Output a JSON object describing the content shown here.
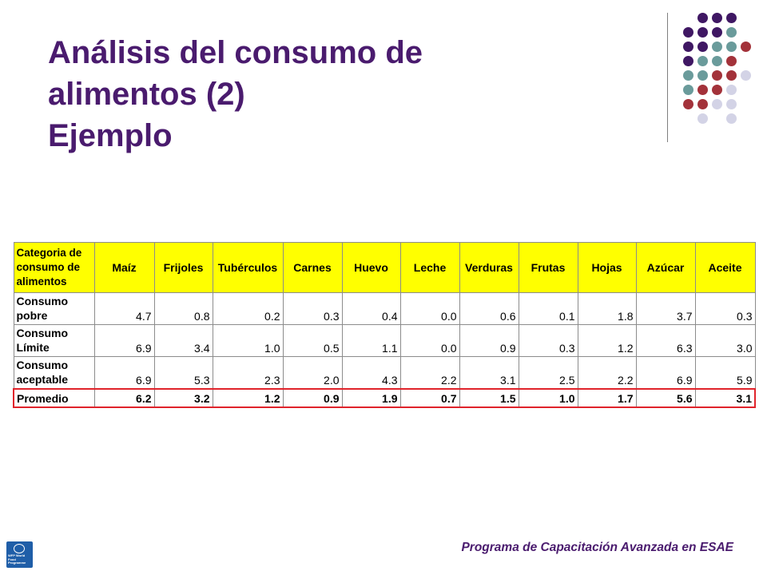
{
  "slide": {
    "title_lines": [
      "Análisis del consumo de",
      "alimentos (2)",
      "Ejemplo"
    ],
    "footer": "Programa de Capacitación Avanzada en ESAE",
    "logo": {
      "icon": "wfp-logo-icon",
      "text": "WFP World Food Programme"
    }
  },
  "colors": {
    "title": "#4a1b6e",
    "header_fill": "#ffff00",
    "highlight_border": "#e0232b",
    "dot_purple": "#3f1763",
    "dot_teal": "#6a9b9b",
    "dot_red": "#a3323a",
    "dot_lavender": "#d3d3e6"
  },
  "table": {
    "header": {
      "category": "Categoria de consumo de alimentos",
      "columns": [
        "Maíz",
        "Frijoles",
        "Tubérculos",
        "Carnes",
        "Huevo",
        "Leche",
        "Verduras",
        "Frutas",
        "Hojas",
        "Azúcar",
        "Aceite"
      ]
    },
    "rows": [
      {
        "label": "Consumo pobre",
        "values": [
          "4.7",
          "0.8",
          "0.2",
          "0.3",
          "0.4",
          "0.0",
          "0.6",
          "0.1",
          "1.8",
          "3.7",
          "0.3"
        ]
      },
      {
        "label": "Consumo Límite",
        "values": [
          "6.9",
          "3.4",
          "1.0",
          "0.5",
          "1.1",
          "0.0",
          "0.9",
          "0.3",
          "1.2",
          "6.3",
          "3.0"
        ]
      },
      {
        "label": "Consumo aceptable",
        "values": [
          "6.9",
          "5.3",
          "2.3",
          "2.0",
          "4.3",
          "2.2",
          "3.1",
          "2.5",
          "2.2",
          "6.9",
          "5.9"
        ]
      },
      {
        "label": "Promedio",
        "values": [
          "6.2",
          "3.2",
          "1.2",
          "0.9",
          "1.9",
          "0.7",
          "1.5",
          "1.0",
          "1.7",
          "5.6",
          "3.1"
        ]
      }
    ]
  }
}
